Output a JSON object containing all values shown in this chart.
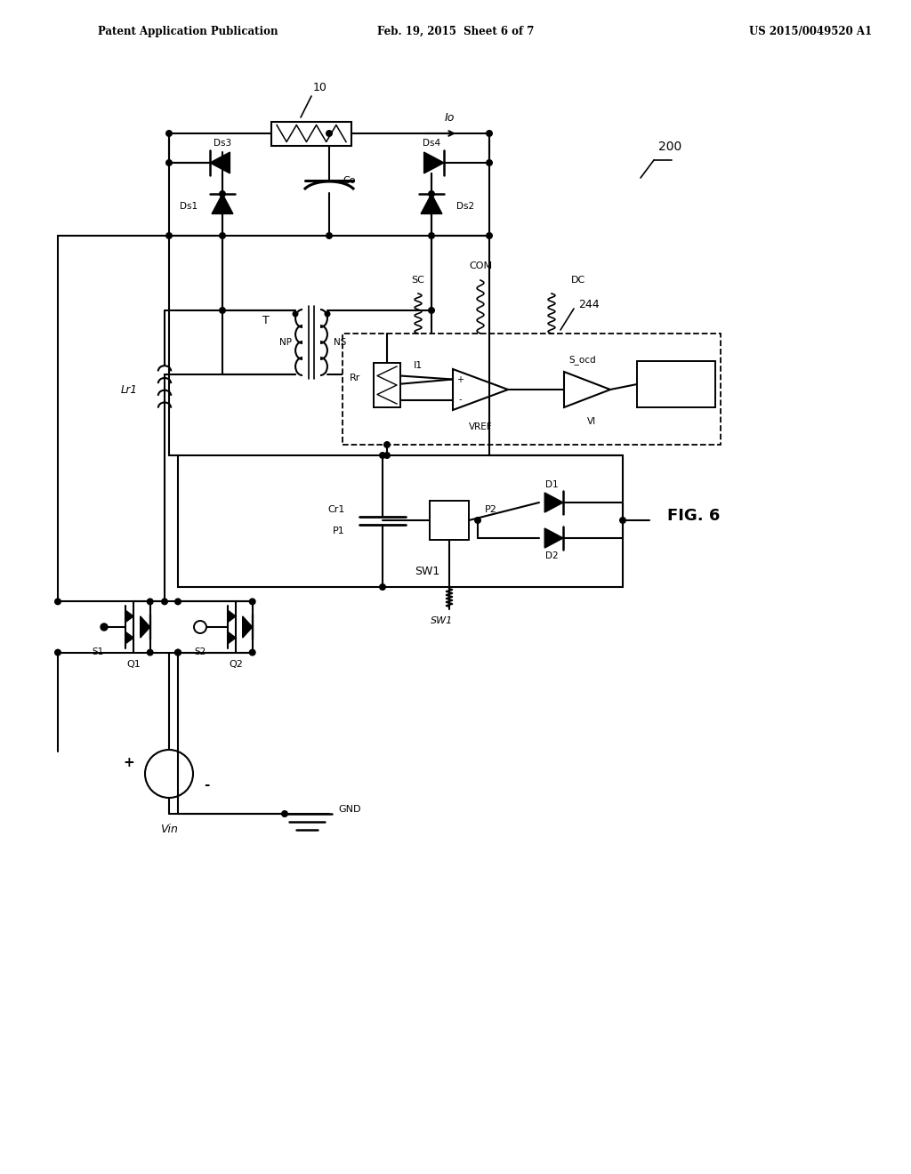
{
  "header_left": "Patent Application Publication",
  "header_center": "Feb. 19, 2015  Sheet 6 of 7",
  "header_right": "US 2015/0049520 A1",
  "fig_label": "FIG. 6",
  "background_color": "#ffffff"
}
